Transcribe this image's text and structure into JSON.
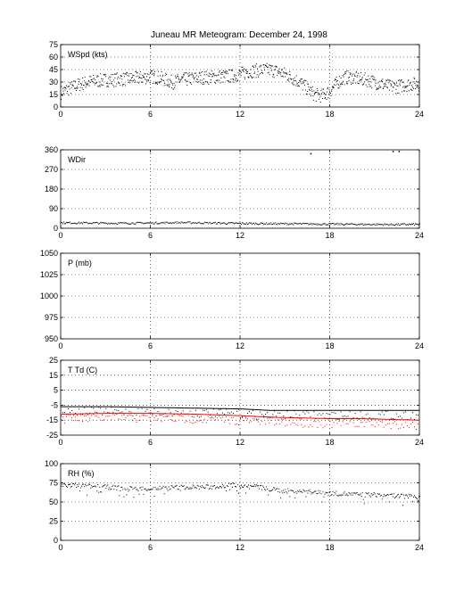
{
  "title": "Juneau MR Meteogram:   December 24, 1998",
  "chart_data": [
    {
      "type": "scatter",
      "panel_label": "WSpd (kts)",
      "xlim": [
        0,
        24
      ],
      "ylim": [
        0,
        75
      ],
      "xticks": [
        0,
        6,
        12,
        18,
        24
      ],
      "yticks": [
        0,
        15,
        30,
        45,
        60,
        75
      ],
      "grid": true,
      "series": [
        {
          "color": "#000000",
          "marker": "dot",
          "x": [
            0,
            0.5,
            1,
            1.5,
            2,
            2.5,
            3,
            3.5,
            4,
            4.5,
            5,
            5.5,
            6,
            6.5,
            7,
            7.5,
            8,
            8.5,
            9,
            9.5,
            10,
            10.5,
            11,
            11.5,
            12,
            12.5,
            13,
            13.5,
            14,
            14.5,
            15,
            15.5,
            16,
            16.5,
            17,
            17.5,
            18,
            18.5,
            19,
            19.5,
            20,
            20.5,
            21,
            21.5,
            22,
            22.5,
            23,
            23.5,
            24
          ],
          "y": [
            18,
            22,
            26,
            29,
            31,
            32,
            33,
            33,
            34,
            34,
            35,
            36,
            37,
            36,
            33,
            30,
            33,
            34,
            35,
            36,
            36,
            37,
            37,
            38,
            40,
            43,
            44,
            45,
            45,
            43,
            40,
            35,
            30,
            22,
            15,
            14,
            20,
            30,
            36,
            36,
            34,
            33,
            30,
            28,
            25,
            25,
            27,
            28,
            28
          ]
        }
      ]
    },
    {
      "type": "scatter",
      "panel_label": "WDir",
      "xlim": [
        0,
        24
      ],
      "ylim": [
        0,
        360
      ],
      "xticks": [
        0,
        6,
        12,
        18,
        24
      ],
      "yticks": [
        0,
        90,
        180,
        270,
        360
      ],
      "grid": true,
      "series": [
        {
          "color": "#000000",
          "marker": "dot",
          "x": [
            0,
            2,
            4,
            6,
            8,
            10,
            12,
            14,
            16,
            18,
            20,
            22,
            24
          ],
          "y": [
            27,
            26,
            25,
            26,
            28,
            26,
            24,
            23,
            22,
            21,
            20,
            19,
            20
          ]
        }
      ],
      "outliers": {
        "x": [
          16.7,
          22.2,
          22.6
        ],
        "y": [
          345,
          355,
          355
        ]
      }
    },
    {
      "type": "scatter",
      "panel_label": "P (mb)",
      "xlim": [
        0,
        24
      ],
      "ylim": [
        950,
        1050
      ],
      "xticks": [
        0,
        6,
        12,
        18,
        24
      ],
      "yticks": [
        950,
        975,
        1000,
        1025,
        1050
      ],
      "grid": true,
      "series": []
    },
    {
      "type": "line",
      "panel_label": "T Td (C)",
      "xlim": [
        0,
        24
      ],
      "ylim": [
        -25,
        25
      ],
      "xticks": [
        0,
        6,
        12,
        18,
        24
      ],
      "yticks": [
        -25,
        -15,
        -5,
        5,
        15,
        25
      ],
      "grid": true,
      "series": [
        {
          "color": "#000000",
          "x": [
            0,
            3,
            6,
            9,
            12,
            14,
            16,
            18,
            20,
            22,
            24
          ],
          "y": [
            -6,
            -6,
            -6.5,
            -7,
            -7.5,
            -8.5,
            -8.5,
            -8.5,
            -8.5,
            -8.5,
            -8.5
          ]
        },
        {
          "color": "#ff0000",
          "x": [
            0,
            3,
            6,
            9,
            12,
            14,
            16,
            18,
            20,
            22,
            24
          ],
          "y": [
            -11,
            -10.5,
            -10.5,
            -11,
            -12,
            -13,
            -13.5,
            -14,
            -14,
            -14.5,
            -15
          ]
        }
      ]
    },
    {
      "type": "scatter",
      "panel_label": "RH (%)",
      "xlim": [
        0,
        24
      ],
      "ylim": [
        0,
        100
      ],
      "xticks": [
        0,
        6,
        12,
        18,
        24
      ],
      "yticks": [
        0,
        25,
        50,
        75,
        100
      ],
      "grid": true,
      "series": [
        {
          "color": "#000000",
          "marker": "dot",
          "x": [
            0,
            1,
            2,
            3,
            4,
            5,
            6,
            7,
            8,
            9,
            10,
            11,
            12,
            13,
            14,
            15,
            16,
            17,
            18,
            19,
            20,
            21,
            22,
            23,
            24
          ],
          "y": [
            72,
            72,
            71,
            70,
            69,
            68,
            68,
            69,
            70,
            70,
            70,
            72,
            73,
            71,
            67,
            65,
            65,
            63,
            62,
            61,
            60,
            60,
            59,
            58,
            58
          ]
        }
      ]
    }
  ]
}
